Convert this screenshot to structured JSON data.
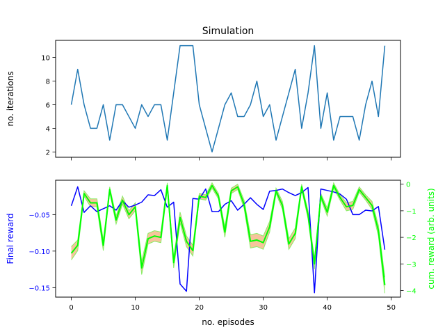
{
  "figure": {
    "title": "Simulation"
  },
  "chart_data": [
    {
      "type": "line",
      "title": "Simulation",
      "xlabel": "",
      "ylabel": "no. iterations",
      "xlim": [
        -2.45,
        51.45
      ],
      "ylim": [
        1.55,
        11.45
      ],
      "xticks": [
        0,
        10,
        20,
        30,
        40,
        50
      ],
      "yticks": [
        2,
        4,
        6,
        8,
        10
      ],
      "series": [
        {
          "color": "#1f77b4",
          "x": [
            0,
            1,
            2,
            3,
            4,
            5,
            6,
            7,
            8,
            9,
            10,
            11,
            12,
            13,
            14,
            15,
            16,
            17,
            18,
            19,
            20,
            21,
            22,
            23,
            24,
            25,
            26,
            27,
            28,
            29,
            30,
            31,
            32,
            33,
            34,
            35,
            36,
            37,
            38,
            39,
            40,
            41,
            42,
            43,
            44,
            45,
            46,
            47,
            48,
            49
          ],
          "values": [
            6,
            9,
            6,
            4,
            4,
            6,
            3,
            6,
            6,
            5,
            4,
            6,
            5,
            6,
            6,
            3,
            7,
            11,
            11,
            11,
            6,
            4,
            2,
            4,
            6,
            7,
            5,
            5,
            6,
            8,
            5,
            6,
            3,
            5,
            7,
            9,
            4,
            7,
            11,
            4,
            7,
            3,
            5,
            5,
            5,
            3,
            6,
            8,
            5,
            11
          ]
        }
      ]
    },
    {
      "type": "line",
      "title": "",
      "xlabel": "no. episodes",
      "ylabel": "Final reward",
      "ylabel_color": "#0000ff",
      "y2label": "cum. reward (arb. units)",
      "y2label_color": "#00ff00",
      "xlim": [
        -2.45,
        51.45
      ],
      "ylim": [
        -0.163,
        -0.003
      ],
      "y2lim": [
        -4.25,
        0.15
      ],
      "xticks": [
        0,
        10,
        20,
        30,
        40,
        50
      ],
      "yticks": [
        -0.15,
        -0.1,
        -0.05
      ],
      "ytick_labels": [
        "−0.15",
        "−0.10",
        "−0.05"
      ],
      "y2ticks": [
        -4,
        -3,
        -2,
        -1,
        0
      ],
      "y2tick_labels": [
        "−4",
        "−3",
        "−2",
        "−1",
        "0"
      ],
      "series": [
        {
          "axis": "left",
          "color": "#0000ff",
          "x": [
            0,
            1,
            2,
            3,
            4,
            5,
            6,
            7,
            8,
            9,
            10,
            11,
            12,
            13,
            14,
            15,
            16,
            17,
            18,
            19,
            20,
            21,
            22,
            23,
            24,
            25,
            26,
            27,
            28,
            29,
            30,
            31,
            32,
            33,
            34,
            35,
            36,
            37,
            38,
            39,
            40,
            41,
            42,
            43,
            44,
            45,
            46,
            47,
            48,
            49
          ],
          "values": [
            -0.038,
            -0.012,
            -0.047,
            -0.038,
            -0.046,
            -0.042,
            -0.038,
            -0.044,
            -0.031,
            -0.04,
            -0.037,
            -0.033,
            -0.023,
            -0.024,
            -0.016,
            -0.04,
            -0.033,
            -0.145,
            -0.155,
            -0.028,
            -0.029,
            -0.015,
            -0.046,
            -0.046,
            -0.036,
            -0.031,
            -0.044,
            -0.036,
            -0.027,
            -0.036,
            -0.043,
            -0.018,
            -0.017,
            -0.015,
            -0.02,
            -0.024,
            -0.02,
            -0.013,
            -0.157,
            -0.015,
            -0.017,
            -0.019,
            -0.022,
            -0.029,
            -0.05,
            -0.05,
            -0.044,
            -0.045,
            -0.039,
            -0.098
          ]
        },
        {
          "axis": "right",
          "color": "#00ff00",
          "band_color": "#f5c197",
          "band_edge_color": "#88ee66",
          "x": [
            0,
            1,
            2,
            3,
            4,
            5,
            6,
            7,
            8,
            9,
            10,
            11,
            12,
            13,
            14,
            15,
            16,
            17,
            18,
            19,
            20,
            21,
            22,
            23,
            24,
            25,
            26,
            27,
            28,
            29,
            30,
            31,
            32,
            33,
            34,
            35,
            36,
            37,
            38,
            39,
            40,
            41,
            42,
            43,
            44,
            45,
            46,
            47,
            48,
            49
          ],
          "values": [
            -2.6,
            -2.3,
            -0.35,
            -0.7,
            -0.7,
            -2.3,
            -0.2,
            -1.35,
            -0.6,
            -1.15,
            -0.85,
            -3.15,
            -2.05,
            -1.95,
            -2.0,
            -0.05,
            -2.95,
            -1.25,
            -2.15,
            -2.5,
            -0.45,
            -0.5,
            -0.05,
            -0.45,
            -1.8,
            -0.25,
            -0.1,
            -0.75,
            -2.15,
            -2.1,
            -2.2,
            -1.6,
            -0.25,
            -0.8,
            -2.25,
            -1.85,
            -0.1,
            -1.15,
            -3.0,
            -0.45,
            -1.05,
            -0.05,
            -0.5,
            -0.85,
            -0.8,
            -0.2,
            -0.5,
            -0.8,
            -1.75,
            -3.8
          ],
          "spread": [
            0.25,
            0.2,
            0.1,
            0.15,
            0.15,
            0.2,
            0.1,
            0.15,
            0.15,
            0.15,
            0.15,
            0.25,
            0.2,
            0.2,
            0.2,
            0.1,
            0.2,
            0.2,
            0.2,
            0.2,
            0.1,
            0.1,
            0.1,
            0.1,
            0.2,
            0.1,
            0.1,
            0.15,
            0.25,
            0.25,
            0.25,
            0.2,
            0.1,
            0.15,
            0.2,
            0.2,
            0.1,
            0.15,
            0.2,
            0.1,
            0.15,
            0.1,
            0.1,
            0.15,
            0.15,
            0.1,
            0.1,
            0.15,
            0.2,
            0.3
          ]
        }
      ]
    }
  ]
}
